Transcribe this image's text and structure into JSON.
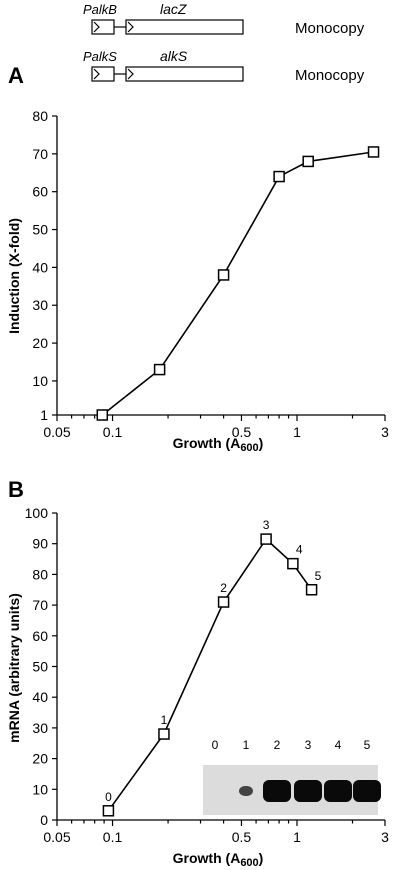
{
  "constructs": [
    {
      "promoter": "PalkB",
      "gene": "lacZ",
      "copy": "Monocopy"
    },
    {
      "promoter": "PalkS",
      "gene": "alkS",
      "copy": "Monocopy"
    }
  ],
  "chart_data": [
    {
      "type": "line",
      "panel": "A",
      "title": "",
      "xlabel": "Growth (A",
      "xlabel_sub": "600",
      "xlabel_close": ")",
      "ylabel": "Induction (X-fold)",
      "xscale": "log",
      "xlim": [
        0.05,
        3
      ],
      "xticks": [
        "0.05",
        "0.1",
        "0.5",
        "1",
        "3"
      ],
      "ylim": [
        1,
        80
      ],
      "yticks": [
        "1",
        "10",
        "20",
        "30",
        "40",
        "50",
        "60",
        "70",
        "80"
      ],
      "series": [
        {
          "x": [
            0.088,
            0.18,
            0.4,
            0.8,
            1.15,
            2.6
          ],
          "y": [
            1,
            13,
            38,
            64,
            68,
            70.5
          ],
          "marker": "open-square"
        }
      ]
    },
    {
      "type": "line",
      "panel": "B",
      "title": "",
      "xlabel": "Growth (A",
      "xlabel_sub": "600",
      "xlabel_close": ")",
      "ylabel": "mRNA (arbitrary units)",
      "xscale": "log",
      "xlim": [
        0.05,
        3
      ],
      "xticks": [
        "0.05",
        "0.1",
        "0.5",
        "1",
        "3"
      ],
      "ylim": [
        0,
        100
      ],
      "yticks": [
        "0",
        "10",
        "20",
        "30",
        "40",
        "50",
        "60",
        "70",
        "80",
        "90",
        "100"
      ],
      "series": [
        {
          "x": [
            0.095,
            0.19,
            0.4,
            0.68,
            0.95,
            1.2
          ],
          "y": [
            3,
            28,
            71,
            91.5,
            83.5,
            75
          ],
          "marker": "open-square"
        }
      ],
      "point_labels": [
        "0",
        "1",
        "2",
        "3",
        "4",
        "5"
      ],
      "inset": {
        "lane_labels": [
          "0",
          "1",
          "2",
          "3",
          "4",
          "5"
        ],
        "band_intensity": [
          0,
          0.45,
          1,
          1,
          1,
          1
        ]
      }
    }
  ]
}
